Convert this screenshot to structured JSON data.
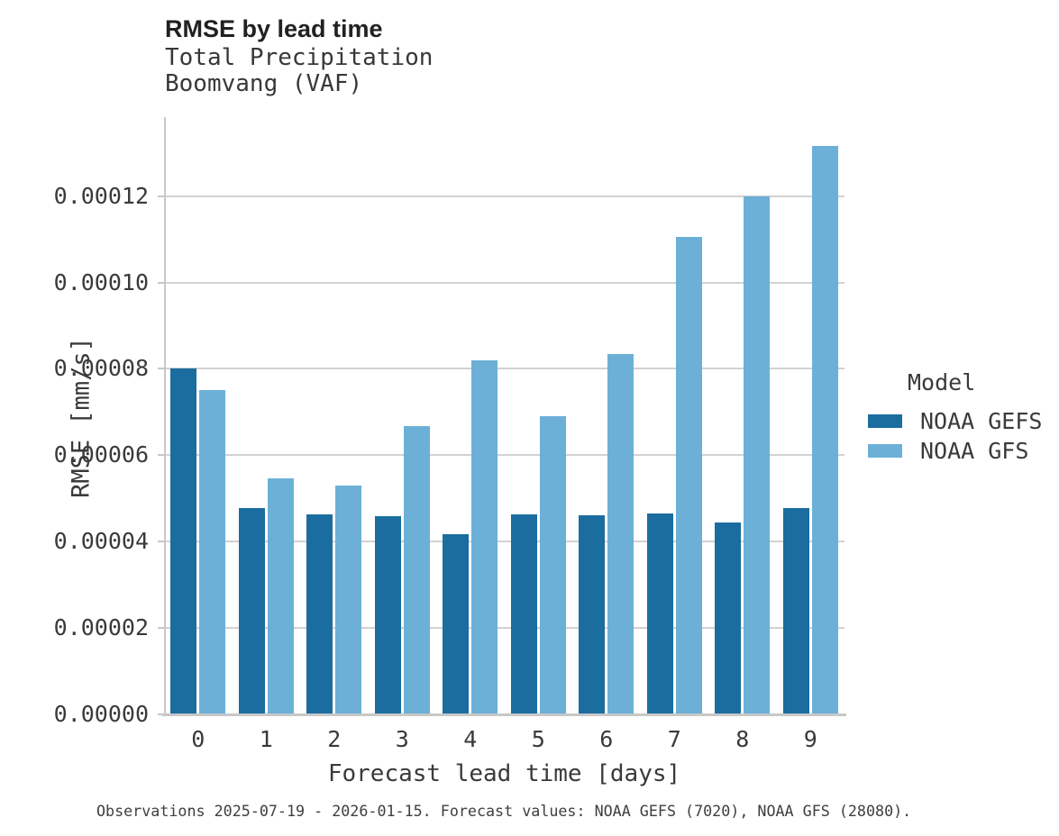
{
  "chart_data": {
    "type": "bar",
    "title": "RMSE by lead time",
    "subtitle": [
      "Total Precipitation",
      "Boomvang (VAF)"
    ],
    "xlabel": "Forecast lead time [days]",
    "ylabel": "RMSE [mm/s]",
    "categories": [
      "0",
      "1",
      "2",
      "3",
      "4",
      "5",
      "6",
      "7",
      "8",
      "9"
    ],
    "series": [
      {
        "name": "NOAA GEFS",
        "color": "#1a6d9e",
        "values": [
          8e-05,
          4.78e-05,
          4.63e-05,
          4.59e-05,
          4.18e-05,
          4.64e-05,
          4.62e-05,
          4.66e-05,
          4.45e-05,
          4.77e-05
        ]
      },
      {
        "name": "NOAA GFS",
        "color": "#6cb0d8",
        "values": [
          7.51e-05,
          5.47e-05,
          5.3e-05,
          6.67e-05,
          8.2e-05,
          6.9e-05,
          8.35e-05,
          0.0001105,
          0.00012,
          0.0001316
        ]
      }
    ],
    "y_ticks": [
      0.0,
      2e-05,
      4e-05,
      6e-05,
      8e-05,
      0.0001,
      0.00012
    ],
    "y_tick_labels": [
      "0.00000",
      "0.00002",
      "0.00004",
      "0.00006",
      "0.00008",
      "0.00010",
      "0.00012"
    ],
    "ylim": [
      0,
      0.0001383
    ],
    "grid": "horizontal",
    "legend": {
      "title": "Model",
      "position": "right"
    }
  },
  "caption": "Observations 2025-07-19 - 2026-01-15. Forecast values: NOAA GEFS (7020), NOAA GFS (28080).",
  "colors": {
    "grid": "#d2d2d2",
    "spine": "#c8c8c8",
    "text": "#3a3a3a",
    "title": "#212121",
    "gefs": "#1a6d9e",
    "gfs": "#6cb0d8"
  }
}
